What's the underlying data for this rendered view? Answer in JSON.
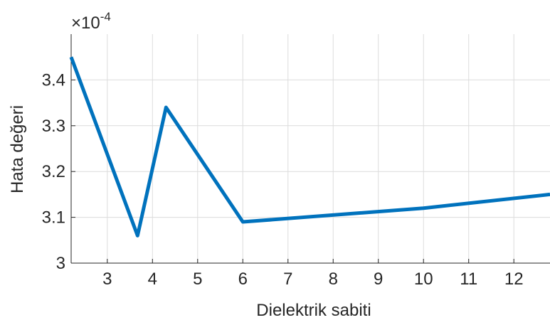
{
  "chart_data": {
    "type": "line",
    "title": "",
    "xlabel": "Dielektrik sabiti",
    "ylabel": "Hata değeri",
    "y_exponent_label": "×10",
    "y_exponent_power": "-4",
    "xlim": [
      2.2,
      12.8
    ],
    "ylim": [
      3.0,
      3.5
    ],
    "x_ticks": [
      3,
      4,
      5,
      6,
      7,
      8,
      9,
      10,
      11,
      12
    ],
    "x_tick_labels": [
      "3",
      "4",
      "5",
      "6",
      "7",
      "8",
      "9",
      "10",
      "11",
      "12"
    ],
    "y_ticks": [
      3.0,
      3.1,
      3.2,
      3.3,
      3.4
    ],
    "y_tick_labels": [
      "3",
      "3.1",
      "3.2",
      "3.3",
      "3.4"
    ],
    "grid": true,
    "series": [
      {
        "color": "#0072bd",
        "x": [
          2.2,
          3.67,
          4.3,
          6.0,
          10.0,
          12.8
        ],
        "y": [
          3.45,
          3.06,
          3.34,
          3.09,
          3.12,
          3.15
        ]
      }
    ]
  }
}
